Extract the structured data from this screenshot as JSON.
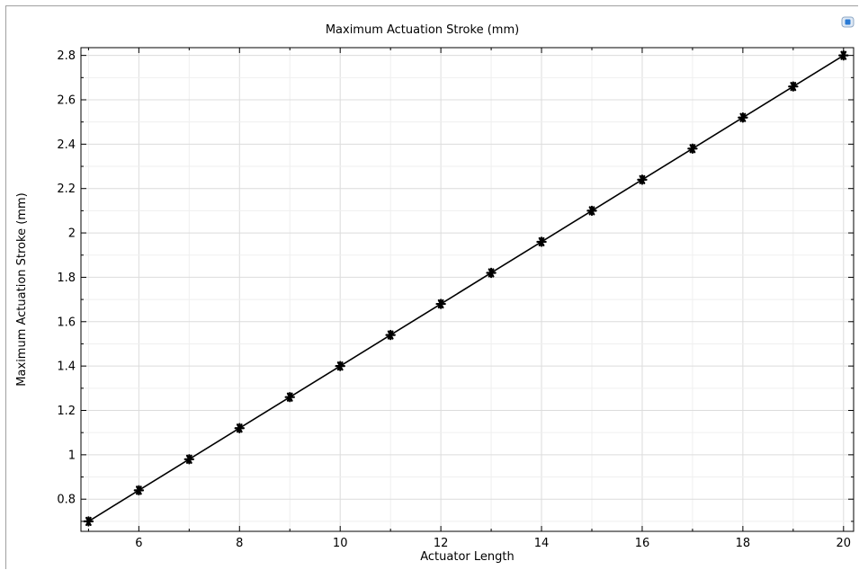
{
  "chart_data": {
    "type": "line",
    "title": "Maximum Actuation Stroke (mm)",
    "xlabel": "Actuator Length",
    "ylabel": "Maximum Actuation Stroke (mm)",
    "xlim": [
      4.85,
      20.2
    ],
    "ylim": [
      0.655,
      2.835
    ],
    "x_ticks": [
      6,
      8,
      10,
      12,
      14,
      16,
      18,
      20
    ],
    "y_ticks": [
      0.8,
      1,
      1.2,
      1.4,
      1.6,
      1.8,
      2,
      2.2,
      2.4,
      2.6,
      2.8
    ],
    "x_tick_labels": [
      "6",
      "8",
      "10",
      "12",
      "14",
      "16",
      "18",
      "20"
    ],
    "y_tick_labels": [
      "0.8",
      "1",
      "1.2",
      "1.4",
      "1.6",
      "1.8",
      "2",
      "2.2",
      "2.4",
      "2.6",
      "2.8"
    ],
    "x_minor_step": 1,
    "y_minor_step": 0.1,
    "grid": true,
    "marker": "star",
    "line_color": "#000000",
    "x": [
      5,
      6,
      7,
      8,
      9,
      10,
      11,
      12,
      13,
      14,
      15,
      16,
      17,
      18,
      19,
      20
    ],
    "y": [
      0.7,
      0.84,
      0.98,
      1.12,
      1.26,
      1.4,
      1.54,
      1.68,
      1.82,
      1.96,
      2.1,
      2.24,
      2.38,
      2.52,
      2.66,
      2.8
    ]
  },
  "toolbar": {
    "icon": "plot-window-icon",
    "icon_color": "#2a7ad5"
  }
}
